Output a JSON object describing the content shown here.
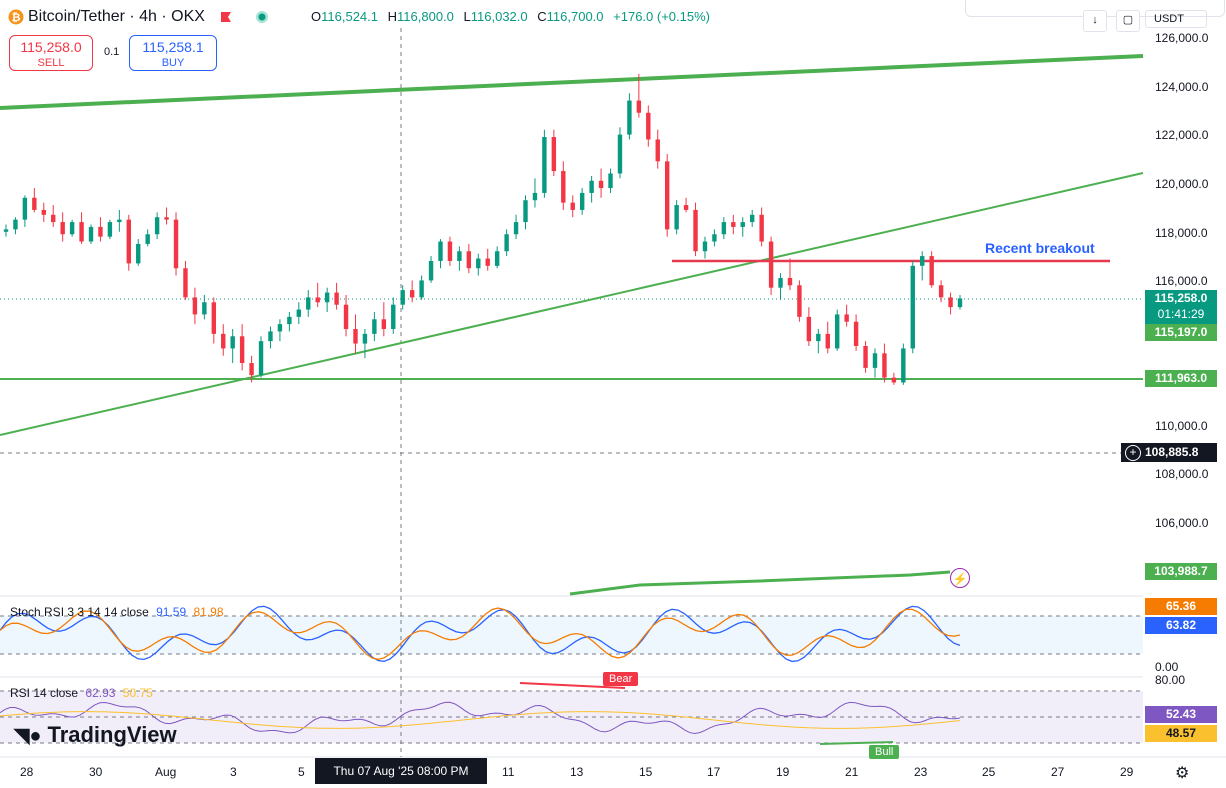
{
  "header": {
    "title": "Bitcoin/Tether · 4h · OKX",
    "ohlc": [
      {
        "label": "O",
        "value": "116,524.1"
      },
      {
        "label": "H",
        "value": "116,800.0"
      },
      {
        "label": "L",
        "value": "116,032.0"
      },
      {
        "label": "C",
        "value": "116,700.0"
      }
    ],
    "change": "+176.0 (+0.15%)"
  },
  "trade": {
    "sell_price": "115,258.0",
    "sell_label": "SELL",
    "spread": "0.1",
    "buy_price": "115,258.1",
    "buy_label": "BUY"
  },
  "currency": "USDT",
  "price_axis": [
    "126,000.0",
    "124,000.0",
    "122,000.0",
    "120,000.0",
    "118,000.0",
    "116,000.0",
    "110,000.0",
    "108,000.0",
    "106,000.0"
  ],
  "price_tags": {
    "current": "115,258.0",
    "countdown": "01:41:29",
    "level_1": "115,197.0",
    "level_2": "111,963.0",
    "crosshair": "108,885.8",
    "level_3": "103,988.7"
  },
  "annotation": "Recent breakout",
  "stoch_rsi": {
    "label": "Stoch RSI 3 3 14 14 close",
    "k": "91.59",
    "d": "81.98",
    "tag_d": "65.36",
    "tag_k": "63.82",
    "axis_zero": "0.00"
  },
  "rsi": {
    "label": "RSI 14 close",
    "rsi": "62.93",
    "ma": "50.75",
    "axis_top": "80.00",
    "tag_rsi": "52.43",
    "tag_ma": "48.57",
    "bear_label": "Bear",
    "bull_label": "Bull"
  },
  "time_axis": [
    "28",
    "30",
    "Aug",
    "3",
    "5",
    "11",
    "13",
    "15",
    "17",
    "19",
    "21",
    "23",
    "25",
    "27",
    "29"
  ],
  "crosshair_time": "Thu 07 Aug '25   08:00 PM",
  "logo": "TradingView",
  "colors": {
    "up": "#089981",
    "down": "#f23645",
    "trend": "#4caf50",
    "resistance": "#e53950",
    "blue": "#2962ff",
    "stoch_k": "#2962ff",
    "stoch_d": "#f57c00",
    "rsi_line": "#7e57c2",
    "rsi_ma": "#fbc02d"
  },
  "chart_data": {
    "type": "candlestick",
    "title": "Bitcoin/Tether · 4h · OKX",
    "ylim": [
      102000,
      127000
    ],
    "ohlc_approx": [
      [
        118000,
        118300,
        117800,
        118100
      ],
      [
        118100,
        118600,
        117900,
        118500
      ],
      [
        118500,
        119500,
        118200,
        119400
      ],
      [
        119400,
        119800,
        118800,
        118900
      ],
      [
        118900,
        119200,
        118400,
        118700
      ],
      [
        118700,
        119100,
        118200,
        118400
      ],
      [
        118400,
        118800,
        117600,
        117900
      ],
      [
        117900,
        118500,
        117800,
        118400
      ],
      [
        118400,
        118800,
        117500,
        117600
      ],
      [
        117600,
        118300,
        117500,
        118200
      ],
      [
        118200,
        118600,
        117600,
        117800
      ],
      [
        117800,
        118500,
        117700,
        118400
      ],
      [
        118400,
        118900,
        118000,
        118500
      ],
      [
        118500,
        118700,
        116400,
        116700
      ],
      [
        116700,
        117700,
        116600,
        117500
      ],
      [
        117500,
        118100,
        117400,
        117900
      ],
      [
        117900,
        118800,
        117700,
        118600
      ],
      [
        118600,
        119000,
        118300,
        118500
      ],
      [
        118500,
        118800,
        116200,
        116500
      ],
      [
        116500,
        116800,
        115200,
        115300
      ],
      [
        115300,
        115700,
        114200,
        114600
      ],
      [
        114600,
        115400,
        114400,
        115100
      ],
      [
        115100,
        115300,
        113400,
        113800
      ],
      [
        113800,
        114200,
        112900,
        113200
      ],
      [
        113200,
        114000,
        112600,
        113700
      ],
      [
        113700,
        114200,
        112300,
        112600
      ],
      [
        112600,
        112900,
        111800,
        112100
      ],
      [
        112100,
        113700,
        112000,
        113500
      ],
      [
        113500,
        114100,
        113200,
        113900
      ],
      [
        113900,
        114400,
        113500,
        114200
      ],
      [
        114200,
        114700,
        113900,
        114500
      ],
      [
        114500,
        115100,
        114200,
        114800
      ],
      [
        114800,
        115600,
        114500,
        115300
      ],
      [
        115300,
        115900,
        114900,
        115100
      ],
      [
        115100,
        115700,
        114700,
        115500
      ],
      [
        115500,
        115900,
        114800,
        115000
      ],
      [
        115000,
        115400,
        113700,
        114000
      ],
      [
        114000,
        114600,
        113000,
        113400
      ],
      [
        113400,
        114000,
        112800,
        113800
      ],
      [
        113800,
        114700,
        113500,
        114400
      ],
      [
        114400,
        115100,
        113700,
        114000
      ],
      [
        114000,
        115300,
        113800,
        115000
      ],
      [
        115000,
        115800,
        114800,
        115600
      ],
      [
        115600,
        116000,
        115100,
        115300
      ],
      [
        115300,
        116200,
        115200,
        116000
      ],
      [
        116000,
        117000,
        115900,
        116800
      ],
      [
        116800,
        117700,
        116500,
        117600
      ],
      [
        117600,
        117800,
        116600,
        116800
      ],
      [
        116800,
        117400,
        116400,
        117200
      ],
      [
        117200,
        117500,
        116300,
        116500
      ],
      [
        116500,
        117100,
        116200,
        116900
      ],
      [
        116900,
        117300,
        116400,
        116600
      ],
      [
        116600,
        117400,
        116500,
        117200
      ],
      [
        117200,
        118100,
        117000,
        117900
      ],
      [
        117900,
        118700,
        117700,
        118400
      ],
      [
        118400,
        119500,
        118100,
        119300
      ],
      [
        119300,
        120200,
        119000,
        119600
      ],
      [
        119600,
        122200,
        119400,
        121900
      ],
      [
        121900,
        122200,
        120300,
        120500
      ],
      [
        120500,
        120900,
        118900,
        119200
      ],
      [
        119200,
        119500,
        118600,
        118900
      ],
      [
        118900,
        119800,
        118700,
        119600
      ],
      [
        119600,
        120300,
        119200,
        120100
      ],
      [
        120100,
        120600,
        119400,
        119800
      ],
      [
        119800,
        120600,
        119600,
        120400
      ],
      [
        120400,
        122300,
        120200,
        122000
      ],
      [
        122000,
        123700,
        121800,
        123400
      ],
      [
        123400,
        124500,
        122700,
        122900
      ],
      [
        122900,
        123200,
        121500,
        121800
      ],
      [
        121800,
        122200,
        120600,
        120900
      ],
      [
        120900,
        121200,
        117800,
        118100
      ],
      [
        118100,
        119300,
        117900,
        119100
      ],
      [
        119100,
        119400,
        118800,
        118900
      ],
      [
        118900,
        119200,
        117000,
        117200
      ],
      [
        117200,
        117800,
        116900,
        117600
      ],
      [
        117600,
        118100,
        117400,
        117900
      ],
      [
        117900,
        118600,
        117700,
        118400
      ],
      [
        118400,
        118700,
        117900,
        118200
      ],
      [
        118200,
        118600,
        117800,
        118400
      ],
      [
        118400,
        118900,
        118200,
        118700
      ],
      [
        118700,
        119000,
        117400,
        117600
      ],
      [
        117600,
        117800,
        115400,
        115700
      ],
      [
        115700,
        116300,
        115200,
        116100
      ],
      [
        116100,
        116900,
        115600,
        115800
      ],
      [
        115800,
        116000,
        114300,
        114500
      ],
      [
        114500,
        114900,
        113300,
        113500
      ],
      [
        113500,
        114000,
        113000,
        113800
      ],
      [
        113800,
        114300,
        113000,
        113200
      ],
      [
        113200,
        114800,
        113100,
        114600
      ],
      [
        114600,
        115000,
        114100,
        114300
      ],
      [
        114300,
        114600,
        113100,
        113300
      ],
      [
        113300,
        113500,
        112200,
        112400
      ],
      [
        112400,
        113200,
        112000,
        113000
      ],
      [
        113000,
        113400,
        111800,
        112000
      ],
      [
        112000,
        112200,
        111700,
        111800
      ],
      [
        111800,
        113400,
        111700,
        113200
      ],
      [
        113200,
        116800,
        113000,
        116600
      ],
      [
        116600,
        117200,
        116000,
        117000
      ],
      [
        117000,
        117200,
        115700,
        115800
      ],
      [
        115800,
        116000,
        115100,
        115300
      ],
      [
        115300,
        115500,
        114600,
        114900
      ],
      [
        114900,
        115400,
        114800,
        115258
      ]
    ],
    "trendlines": [
      {
        "label": "upper channel",
        "color": "#4caf50"
      },
      {
        "label": "rising support",
        "color": "#4caf50"
      },
      {
        "label": "horizontal support",
        "value": 111963,
        "color": "#4caf50"
      },
      {
        "label": "Recent breakout",
        "value": 116800,
        "color": "#e53950"
      }
    ]
  }
}
